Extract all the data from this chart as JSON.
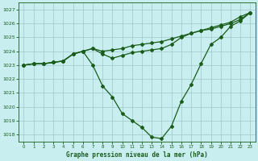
{
  "title": "Graphe pression niveau de la mer (hPa)",
  "bg_color": "#c8eef0",
  "grid_color": "#a0c8c8",
  "line_color": "#1a5c1a",
  "marker_color": "#1a5c1a",
  "xlim": [
    -0.5,
    23.5
  ],
  "ylim": [
    1017.5,
    1027.5
  ],
  "yticks": [
    1018,
    1019,
    1020,
    1021,
    1022,
    1023,
    1024,
    1025,
    1026,
    1027
  ],
  "xticks": [
    0,
    1,
    2,
    3,
    4,
    5,
    6,
    7,
    8,
    9,
    10,
    11,
    12,
    13,
    14,
    15,
    16,
    17,
    18,
    19,
    20,
    21,
    22,
    23
  ],
  "series1": [
    1023.0,
    1023.1,
    1023.1,
    1023.2,
    1023.3,
    1023.8,
    1024.0,
    1024.2,
    1024.0,
    1024.1,
    1024.2,
    1024.4,
    1024.5,
    1024.6,
    1024.7,
    1024.9,
    1025.1,
    1025.3,
    1025.5,
    1025.7,
    1025.9,
    1026.1,
    1026.5,
    1026.8
  ],
  "series2": [
    1023.0,
    1023.1,
    1023.1,
    1023.2,
    1023.3,
    1023.8,
    1024.0,
    1023.0,
    1021.5,
    1020.7,
    1019.5,
    1019.0,
    1018.5,
    1017.8,
    1017.7,
    1018.6,
    1020.4,
    1021.6,
    1023.1,
    1024.5,
    1025.0,
    1025.8,
    1026.2,
    1026.8
  ],
  "series3": [
    1023.0,
    1023.1,
    1023.1,
    1023.2,
    1023.3,
    1023.8,
    1024.0,
    1024.2,
    1023.8,
    1023.5,
    1023.7,
    1023.9,
    1024.0,
    1024.1,
    1024.2,
    1024.5,
    1025.0,
    1025.3,
    1025.5,
    1025.6,
    1025.8,
    1026.0,
    1026.3,
    1026.8
  ]
}
